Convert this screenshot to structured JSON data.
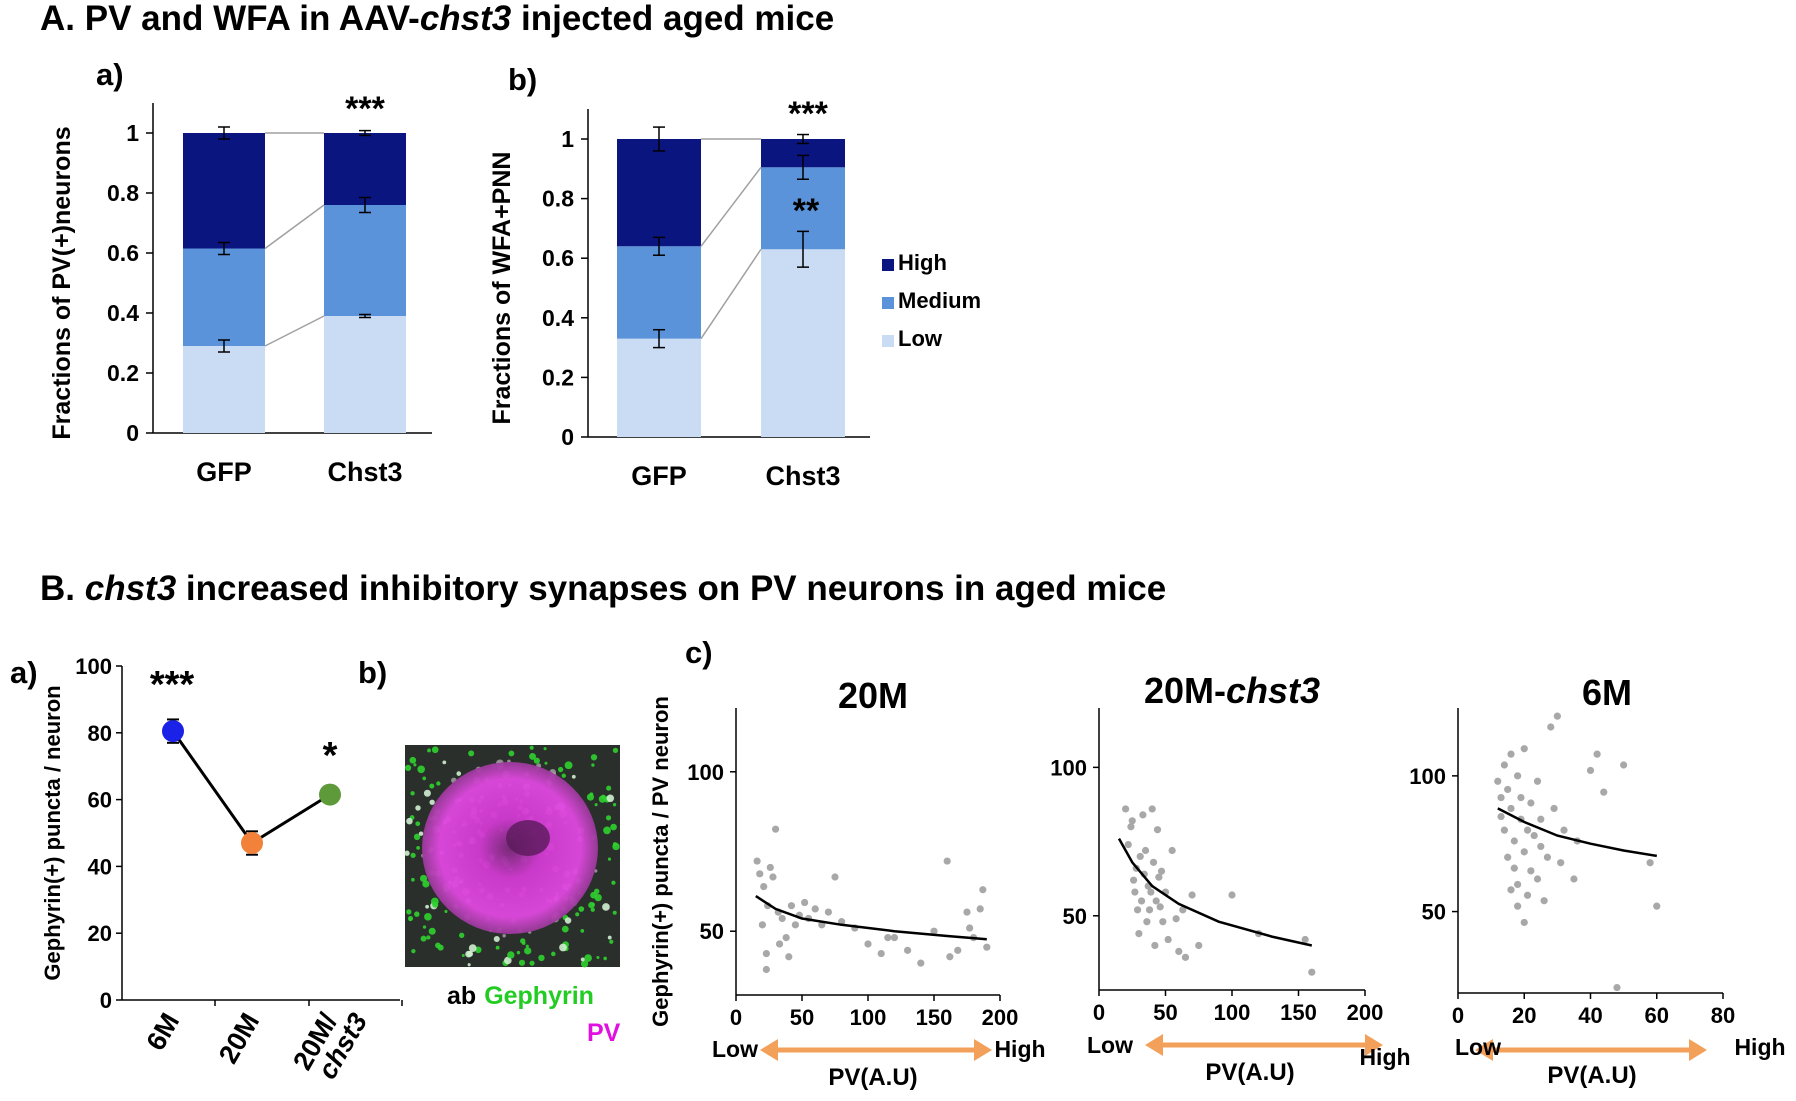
{
  "section_a": {
    "prefix": "A. PV and WFA in AAV-",
    "gene": "chst3",
    "suffix": " injected aged mice"
  },
  "section_b": {
    "prefix": "B. ",
    "gene": "chst3",
    "suffix": " increased inhibitory synapses  on PV neurons in aged mice"
  },
  "colors": {
    "high": "#0a1580",
    "medium": "#5a93d9",
    "low": "#c9dcf3",
    "orange_arrow": "#f2a05a",
    "point_6m": "#1a22e8",
    "point_20m": "#f2813a",
    "point_20m_chst3": "#5e9a3a",
    "scatter": "#a8a8a8"
  },
  "chart_data": [
    {
      "id": "A-a",
      "type": "bar",
      "stacked": true,
      "panel_label": "a)",
      "ylabel": "Fractions of PV(+)neurons",
      "categories": [
        "GFP",
        "Chst3"
      ],
      "ylim": [
        0,
        1
      ],
      "yticks": [
        "0",
        "0.2",
        "0.4",
        "0.6",
        "0.8",
        "1"
      ],
      "series": [
        {
          "name": "Low",
          "values": [
            0.29,
            0.39
          ],
          "errors": [
            0.02,
            0.005
          ]
        },
        {
          "name": "Medium",
          "values": [
            0.325,
            0.37
          ],
          "errors": [
            0.02,
            0.025
          ]
        },
        {
          "name": "High",
          "values": [
            0.385,
            0.24
          ],
          "errors": [
            0.02,
            0.008
          ]
        }
      ],
      "annotations": [
        {
          "category": "Chst3",
          "text": "***"
        }
      ]
    },
    {
      "id": "A-b",
      "type": "bar",
      "stacked": true,
      "panel_label": "b)",
      "ylabel": "Fractions of WFA+PNN",
      "categories": [
        "GFP",
        "Chst3"
      ],
      "ylim": [
        0,
        1
      ],
      "yticks": [
        "0",
        "0.2",
        "0.4",
        "0.6",
        "0.8",
        "1"
      ],
      "series": [
        {
          "name": "Low",
          "values": [
            0.33,
            0.63
          ],
          "errors": [
            0.03,
            0.06
          ]
        },
        {
          "name": "Medium",
          "values": [
            0.31,
            0.275
          ],
          "errors": [
            0.03,
            0.04
          ]
        },
        {
          "name": "High",
          "values": [
            0.36,
            0.095
          ],
          "errors": [
            0.04,
            0.015
          ]
        }
      ],
      "annotations": [
        {
          "category": "Chst3",
          "text": "***"
        },
        {
          "category": "Chst3",
          "text": "**"
        }
      ],
      "legend": [
        "High",
        "Medium",
        "Low"
      ]
    },
    {
      "id": "B-a",
      "type": "line",
      "panel_label": "a)",
      "ylabel": "Gephyrin(+) puncta / neuron",
      "categories": [
        "6M",
        "20M",
        "20M/"
      ],
      "category_gene": "chst3",
      "values": [
        80.5,
        47,
        61.5
      ],
      "errors": [
        3.5,
        3.5,
        1.5
      ],
      "ylim": [
        0,
        100
      ],
      "yticks": [
        "0",
        "20",
        "40",
        "60",
        "80",
        "100"
      ],
      "annotations": [
        {
          "category": "6M",
          "text": "***"
        },
        {
          "category": "20M/chst3",
          "text": "*"
        }
      ]
    },
    {
      "id": "B-c-20M",
      "type": "scatter",
      "title": "20M",
      "xlabel": "PV(A.U)",
      "ylabel": "Gephyrin(+) puncta / PV neuron",
      "xlim": [
        0,
        200
      ],
      "ylim": [
        30,
        120
      ],
      "xticks": [
        "0",
        "50",
        "100",
        "150",
        "200"
      ],
      "yticks": [
        "50",
        "100"
      ],
      "low_label": "Low",
      "high_label": "High",
      "points": [
        [
          16,
          72
        ],
        [
          18,
          68
        ],
        [
          20,
          52
        ],
        [
          21,
          64
        ],
        [
          23,
          43
        ],
        [
          23,
          38
        ],
        [
          24,
          58
        ],
        [
          26,
          70
        ],
        [
          28,
          67
        ],
        [
          30,
          82
        ],
        [
          32,
          56
        ],
        [
          33,
          46
        ],
        [
          35,
          54
        ],
        [
          38,
          48
        ],
        [
          40,
          42
        ],
        [
          42,
          58
        ],
        [
          45,
          52
        ],
        [
          48,
          55
        ],
        [
          52,
          59
        ],
        [
          55,
          54
        ],
        [
          60,
          57
        ],
        [
          65,
          52
        ],
        [
          70,
          56
        ],
        [
          75,
          67
        ],
        [
          80,
          53
        ],
        [
          90,
          51
        ],
        [
          100,
          46
        ],
        [
          110,
          43
        ],
        [
          115,
          48
        ],
        [
          120,
          48
        ],
        [
          130,
          44
        ],
        [
          140,
          40
        ],
        [
          150,
          50
        ],
        [
          160,
          72
        ],
        [
          162,
          42
        ],
        [
          168,
          44
        ],
        [
          175,
          56
        ],
        [
          177,
          51
        ],
        [
          180,
          48
        ],
        [
          185,
          57
        ],
        [
          187,
          63
        ],
        [
          190,
          45
        ]
      ],
      "fit": [
        [
          15,
          61
        ],
        [
          30,
          57
        ],
        [
          50,
          54
        ],
        [
          80,
          52
        ],
        [
          120,
          50
        ],
        [
          160,
          48.5
        ],
        [
          190,
          47.5
        ]
      ]
    },
    {
      "id": "B-c-20M-chst3",
      "type": "scatter",
      "title_prefix": "20M-",
      "title_gene": "chst3",
      "xlabel": "PV(A.U)",
      "xlim": [
        0,
        200
      ],
      "ylim": [
        25,
        120
      ],
      "xticks": [
        "0",
        "50",
        "100",
        "150",
        "200"
      ],
      "yticks": [
        "50",
        "100"
      ],
      "low_label": "Low",
      "high_label": "High",
      "points": [
        [
          20,
          86
        ],
        [
          22,
          74
        ],
        [
          24,
          80
        ],
        [
          25,
          82
        ],
        [
          26,
          62
        ],
        [
          27,
          58
        ],
        [
          28,
          66
        ],
        [
          29,
          52
        ],
        [
          30,
          44
        ],
        [
          31,
          70
        ],
        [
          32,
          55
        ],
        [
          33,
          84
        ],
        [
          34,
          64
        ],
        [
          35,
          72
        ],
        [
          36,
          48
        ],
        [
          37,
          60
        ],
        [
          38,
          52
        ],
        [
          39,
          58
        ],
        [
          40,
          86
        ],
        [
          41,
          68
        ],
        [
          42,
          40
        ],
        [
          43,
          55
        ],
        [
          44,
          79
        ],
        [
          45,
          63
        ],
        [
          46,
          53
        ],
        [
          47,
          65
        ],
        [
          48,
          48
        ],
        [
          50,
          58
        ],
        [
          52,
          42
        ],
        [
          55,
          72
        ],
        [
          58,
          49
        ],
        [
          60,
          38
        ],
        [
          63,
          52
        ],
        [
          65,
          36
        ],
        [
          70,
          57
        ],
        [
          75,
          40
        ],
        [
          100,
          57
        ],
        [
          120,
          44
        ],
        [
          155,
          42
        ],
        [
          160,
          31
        ]
      ],
      "fit": [
        [
          15,
          76
        ],
        [
          25,
          68
        ],
        [
          40,
          60
        ],
        [
          60,
          54
        ],
        [
          90,
          48
        ],
        [
          130,
          43
        ],
        [
          160,
          40
        ]
      ]
    },
    {
      "id": "B-c-6M",
      "type": "scatter",
      "title": "6M",
      "xlabel": "PV(A.U)",
      "xlim": [
        0,
        80
      ],
      "ylim": [
        20,
        125
      ],
      "xticks": [
        "0",
        "20",
        "40",
        "60",
        "80"
      ],
      "yticks": [
        "50",
        "100"
      ],
      "low_label": "Low",
      "high_label": "High",
      "points": [
        [
          12,
          98
        ],
        [
          13,
          92
        ],
        [
          13,
          85
        ],
        [
          14,
          104
        ],
        [
          14,
          80
        ],
        [
          15,
          95
        ],
        [
          15,
          70
        ],
        [
          16,
          108
        ],
        [
          16,
          88
        ],
        [
          17,
          76
        ],
        [
          17,
          66
        ],
        [
          18,
          100
        ],
        [
          18,
          60
        ],
        [
          19,
          84
        ],
        [
          19,
          92
        ],
        [
          20,
          110
        ],
        [
          20,
          72
        ],
        [
          21,
          56
        ],
        [
          21,
          80
        ],
        [
          22,
          65
        ],
        [
          22,
          90
        ],
        [
          23,
          78
        ],
        [
          24,
          62
        ],
        [
          24,
          98
        ],
        [
          25,
          74
        ],
        [
          25,
          84
        ],
        [
          26,
          54
        ],
        [
          27,
          70
        ],
        [
          28,
          118
        ],
        [
          29,
          88
        ],
        [
          30,
          122
        ],
        [
          31,
          68
        ],
        [
          32,
          80
        ],
        [
          35,
          62
        ],
        [
          36,
          76
        ],
        [
          40,
          102
        ],
        [
          42,
          108
        ],
        [
          44,
          94
        ],
        [
          48,
          22
        ],
        [
          50,
          104
        ],
        [
          58,
          68
        ],
        [
          60,
          52
        ],
        [
          20,
          46
        ],
        [
          18,
          52
        ],
        [
          16,
          58
        ]
      ],
      "fit": [
        [
          12,
          88
        ],
        [
          20,
          83
        ],
        [
          30,
          78
        ],
        [
          40,
          75
        ],
        [
          50,
          72.5
        ],
        [
          60,
          70.5
        ]
      ]
    }
  ],
  "micrograph": {
    "panel_label": "b)",
    "ab_label": "ab",
    "gephyrin_label": "Gephyrin",
    "pv_label": "PV"
  },
  "panel_c_label": "c)",
  "panel_a_label": "a)"
}
